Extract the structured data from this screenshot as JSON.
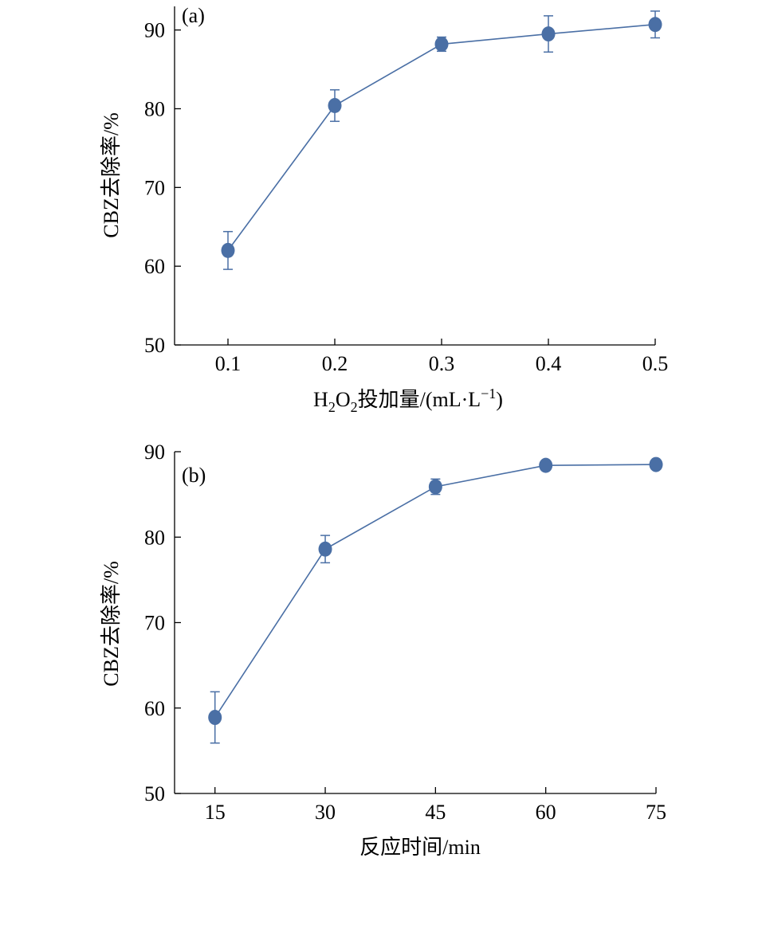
{
  "colors": {
    "series": "#4a6fa5",
    "axis": "#000000"
  },
  "chart_data": [
    {
      "panel_label": "(a)",
      "type": "line",
      "x": [
        0.1,
        0.2,
        0.3,
        0.4,
        0.5
      ],
      "x_tick_labels": [
        "0.1",
        "0.2",
        "0.3",
        "0.4",
        "0.5"
      ],
      "xlim": [
        0.05,
        0.5
      ],
      "ylim": [
        50,
        93
      ],
      "y_ticks": [
        50,
        60,
        70,
        80,
        90
      ],
      "y_tick_labels": [
        "50",
        "60",
        "70",
        "80",
        "90"
      ],
      "xlabel_parts": {
        "h": "H",
        "sub1": "2",
        "o": "O",
        "sub2": "2",
        "rest": "投加量/(mL·L",
        "sup": "−1",
        "close": ")"
      },
      "ylabel": "CBZ去除率/%",
      "series": [
        {
          "values": [
            62.0,
            80.4,
            88.2,
            89.5,
            90.7
          ],
          "errors": [
            2.4,
            2.0,
            0.9,
            2.3,
            1.7
          ]
        }
      ],
      "grid": false,
      "legend": "none"
    },
    {
      "panel_label": "(b)",
      "type": "line",
      "x": [
        15,
        30,
        45,
        60,
        75
      ],
      "x_tick_labels": [
        "15",
        "30",
        "45",
        "60",
        "75"
      ],
      "xlim": [
        9.5,
        75
      ],
      "ylim": [
        50,
        90
      ],
      "y_ticks": [
        50,
        60,
        70,
        80,
        90
      ],
      "y_tick_labels": [
        "50",
        "60",
        "70",
        "80",
        "90"
      ],
      "xlabel": "反应时间/min",
      "ylabel": "CBZ去除率/%",
      "series": [
        {
          "values": [
            58.9,
            78.6,
            85.9,
            88.4,
            88.5
          ],
          "errors": [
            3.0,
            1.6,
            0.9,
            0.5,
            0.5
          ]
        }
      ],
      "grid": false,
      "legend": "none"
    }
  ]
}
